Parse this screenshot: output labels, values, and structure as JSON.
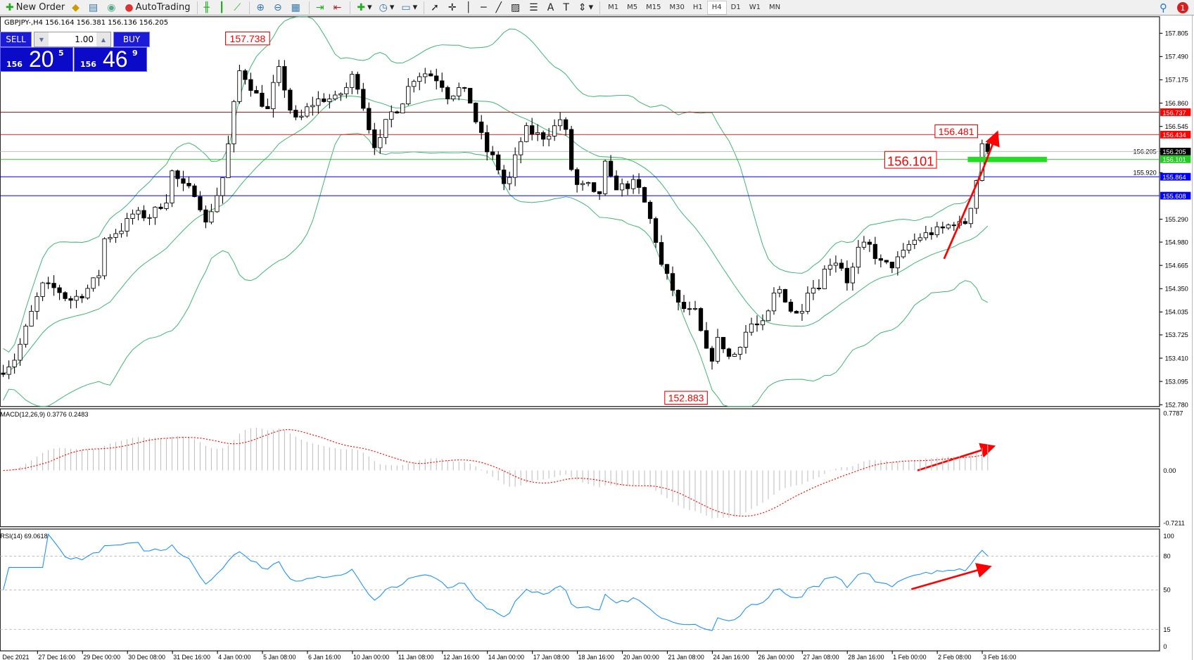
{
  "toolbar": {
    "new_order": "New Order",
    "autotrading": "AutoTrading",
    "timeframes": [
      "M1",
      "M5",
      "M15",
      "M30",
      "H1",
      "H4",
      "D1",
      "W1",
      "MN"
    ],
    "active_timeframe": "H4",
    "notifications": "1"
  },
  "info": {
    "symbol_line": "GBPJPY-,H4  156.164 156.381 156.136 156.205"
  },
  "trade": {
    "sell": "SELL",
    "buy": "BUY",
    "lot": "1.00",
    "sell_big": "156",
    "sell_pips": "20",
    "sell_point": "5",
    "buy_big": "156",
    "buy_pips": "46",
    "buy_point": "9"
  },
  "price_axis": [
    "157.805",
    "157.490",
    "157.175",
    "156.860",
    "156.545",
    "156.205",
    "155.920",
    "155.290",
    "154.980",
    "154.665",
    "154.350",
    "154.035",
    "153.725",
    "153.410",
    "153.095",
    "152.780"
  ],
  "levels": [
    {
      "price": "156.737",
      "color": "#ff0000"
    },
    {
      "price": "156.434",
      "color": "#ff0000"
    },
    {
      "price": "156.205",
      "color": "#000000"
    },
    {
      "price": "156.101",
      "color": "#22cc22"
    },
    {
      "price": "155.864",
      "color": "#0000ff"
    },
    {
      "price": "155.608",
      "color": "#0000ff"
    }
  ],
  "annotations": {
    "high": "157.738",
    "low": "152.883",
    "recent_high": "156.481",
    "entry": "156.101"
  },
  "macd": {
    "label": "MACD(12,26,9) 0.3776 0.2483",
    "axis": [
      "0.7787",
      "0.00",
      "-0.7211"
    ]
  },
  "rsi": {
    "label": "RSI(14) 69.0618",
    "axis": [
      "100",
      "80",
      "50",
      "15",
      "0"
    ]
  },
  "time_axis": [
    "Dec 2021",
    "27 Dec 16:00",
    "29 Dec 00:00",
    "30 Dec 08:00",
    "31 Dec 16:00",
    "4 Jan 00:00",
    "5 Jan 08:00",
    "6 Jan 16:00",
    "10 Jan 00:00",
    "11 Jan 08:00",
    "12 Jan 16:00",
    "14 Jan 00:00",
    "17 Jan 08:00",
    "18 Jan 16:00",
    "20 Jan 00:00",
    "21 Jan 08:00",
    "24 Jan 16:00",
    "26 Jan 00:00",
    "27 Jan 08:00",
    "28 Jan 16:00",
    "1 Feb 00:00",
    "2 Feb 08:00",
    "3 Feb 16:00"
  ],
  "colors": {
    "bollinger": "#3cb371",
    "macd_signal": "#ff0000",
    "macd_hist": "#c0c0c0",
    "rsi": "#1e90ff",
    "arrow": "#ff0000"
  }
}
